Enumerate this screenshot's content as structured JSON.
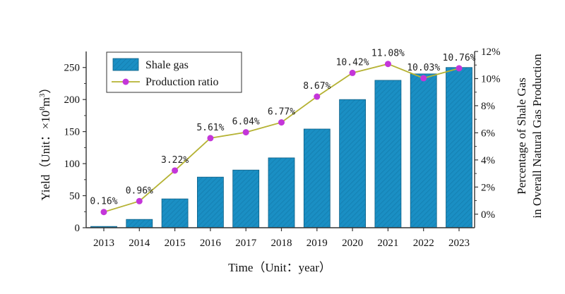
{
  "chart_data": {
    "type": "bar",
    "categories": [
      "2013",
      "2014",
      "2015",
      "2016",
      "2017",
      "2018",
      "2019",
      "2020",
      "2021",
      "2022",
      "2023"
    ],
    "series": [
      {
        "name": "Shale gas",
        "type": "bar",
        "axis": "left",
        "values": [
          2,
          13,
          45,
          79,
          90,
          109,
          154,
          200,
          230,
          240,
          250
        ]
      },
      {
        "name": "Production ratio",
        "type": "line",
        "axis": "right",
        "values": [
          0.16,
          0.96,
          3.22,
          5.61,
          6.04,
          6.77,
          8.67,
          10.42,
          11.08,
          10.03,
          10.76
        ],
        "labels": [
          "0.16%",
          "0.96%",
          "3.22%",
          "5.61%",
          "6.04%",
          "6.77%",
          "8.67%",
          "10.42%",
          "11.08%",
          "10.03%",
          "10.76%"
        ]
      }
    ],
    "xlabel": "Time（Unit：year）",
    "ylabel": "Yield（Unit：×10⁸m³）",
    "ylabel_main": "Yield（Unit：×10",
    "ylabel_sup": "8",
    "ylabel_unit": "m",
    "ylabel_sup2": "3",
    "ylabel_end": "）",
    "y2label_line1": "Percentage of Shale Gas",
    "y2label_line2": "in Overall Natural Gas Production",
    "ylim": [
      0,
      275
    ],
    "yticks": [
      0,
      50,
      100,
      150,
      200,
      250
    ],
    "ytick_labels": [
      "0",
      "50",
      "100",
      "150",
      "200",
      "250"
    ],
    "y2lim": [
      -1,
      12
    ],
    "y2ticks": [
      0,
      2,
      4,
      6,
      8,
      10,
      12
    ],
    "y2tick_labels": [
      "0%",
      "2%",
      "4%",
      "6%",
      "8%",
      "10%",
      "12%"
    ],
    "legend": {
      "placement": "top-left",
      "entries": [
        "Shale gas",
        "Production ratio"
      ]
    },
    "grid": false,
    "colors": {
      "bar_fill": "#1a8fc4",
      "bar_stroke": "#0d5f85",
      "line": "#b5b233",
      "marker": "#c436d9",
      "axis": "#333333"
    }
  }
}
